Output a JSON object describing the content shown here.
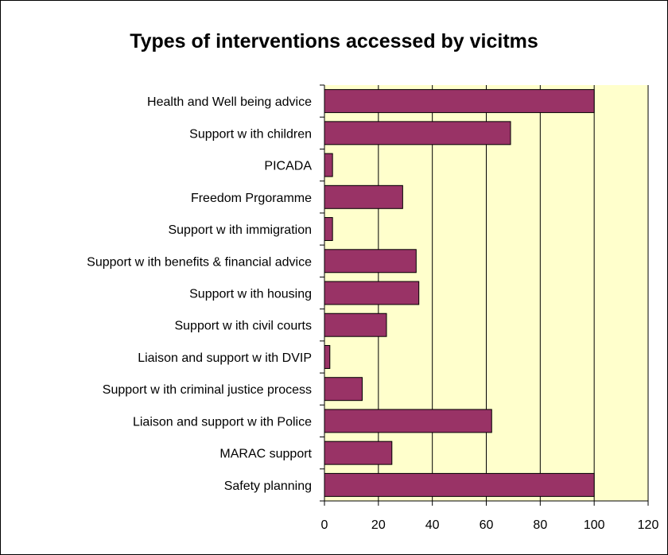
{
  "chart_data": {
    "type": "bar",
    "orientation": "horizontal",
    "title": "Types of interventions accessed by vicitms",
    "categories": [
      "Health and Well being advice",
      "Support w ith children",
      "PICADA",
      "Freedom Prgoramme",
      "Support w ith immigration",
      "Support w ith benefits & financial advice",
      "Support w ith housing",
      "Support w ith civil courts",
      "Liaison and support w ith DVIP",
      "Support w ith criminal justice process",
      "Liaison and support w ith Police",
      "MARAC support",
      "Safety planning"
    ],
    "values": [
      100,
      69,
      3,
      29,
      3,
      34,
      35,
      23,
      2,
      14,
      62,
      25,
      100
    ],
    "xlim": [
      0,
      120
    ],
    "xticks": [
      "0",
      "20",
      "40",
      "60",
      "80",
      "100",
      "120"
    ],
    "grid": "vertical",
    "legend": "none",
    "colors": {
      "bar": "#993366",
      "plot_bg": "#ffffcc",
      "grid": "#000000"
    }
  }
}
